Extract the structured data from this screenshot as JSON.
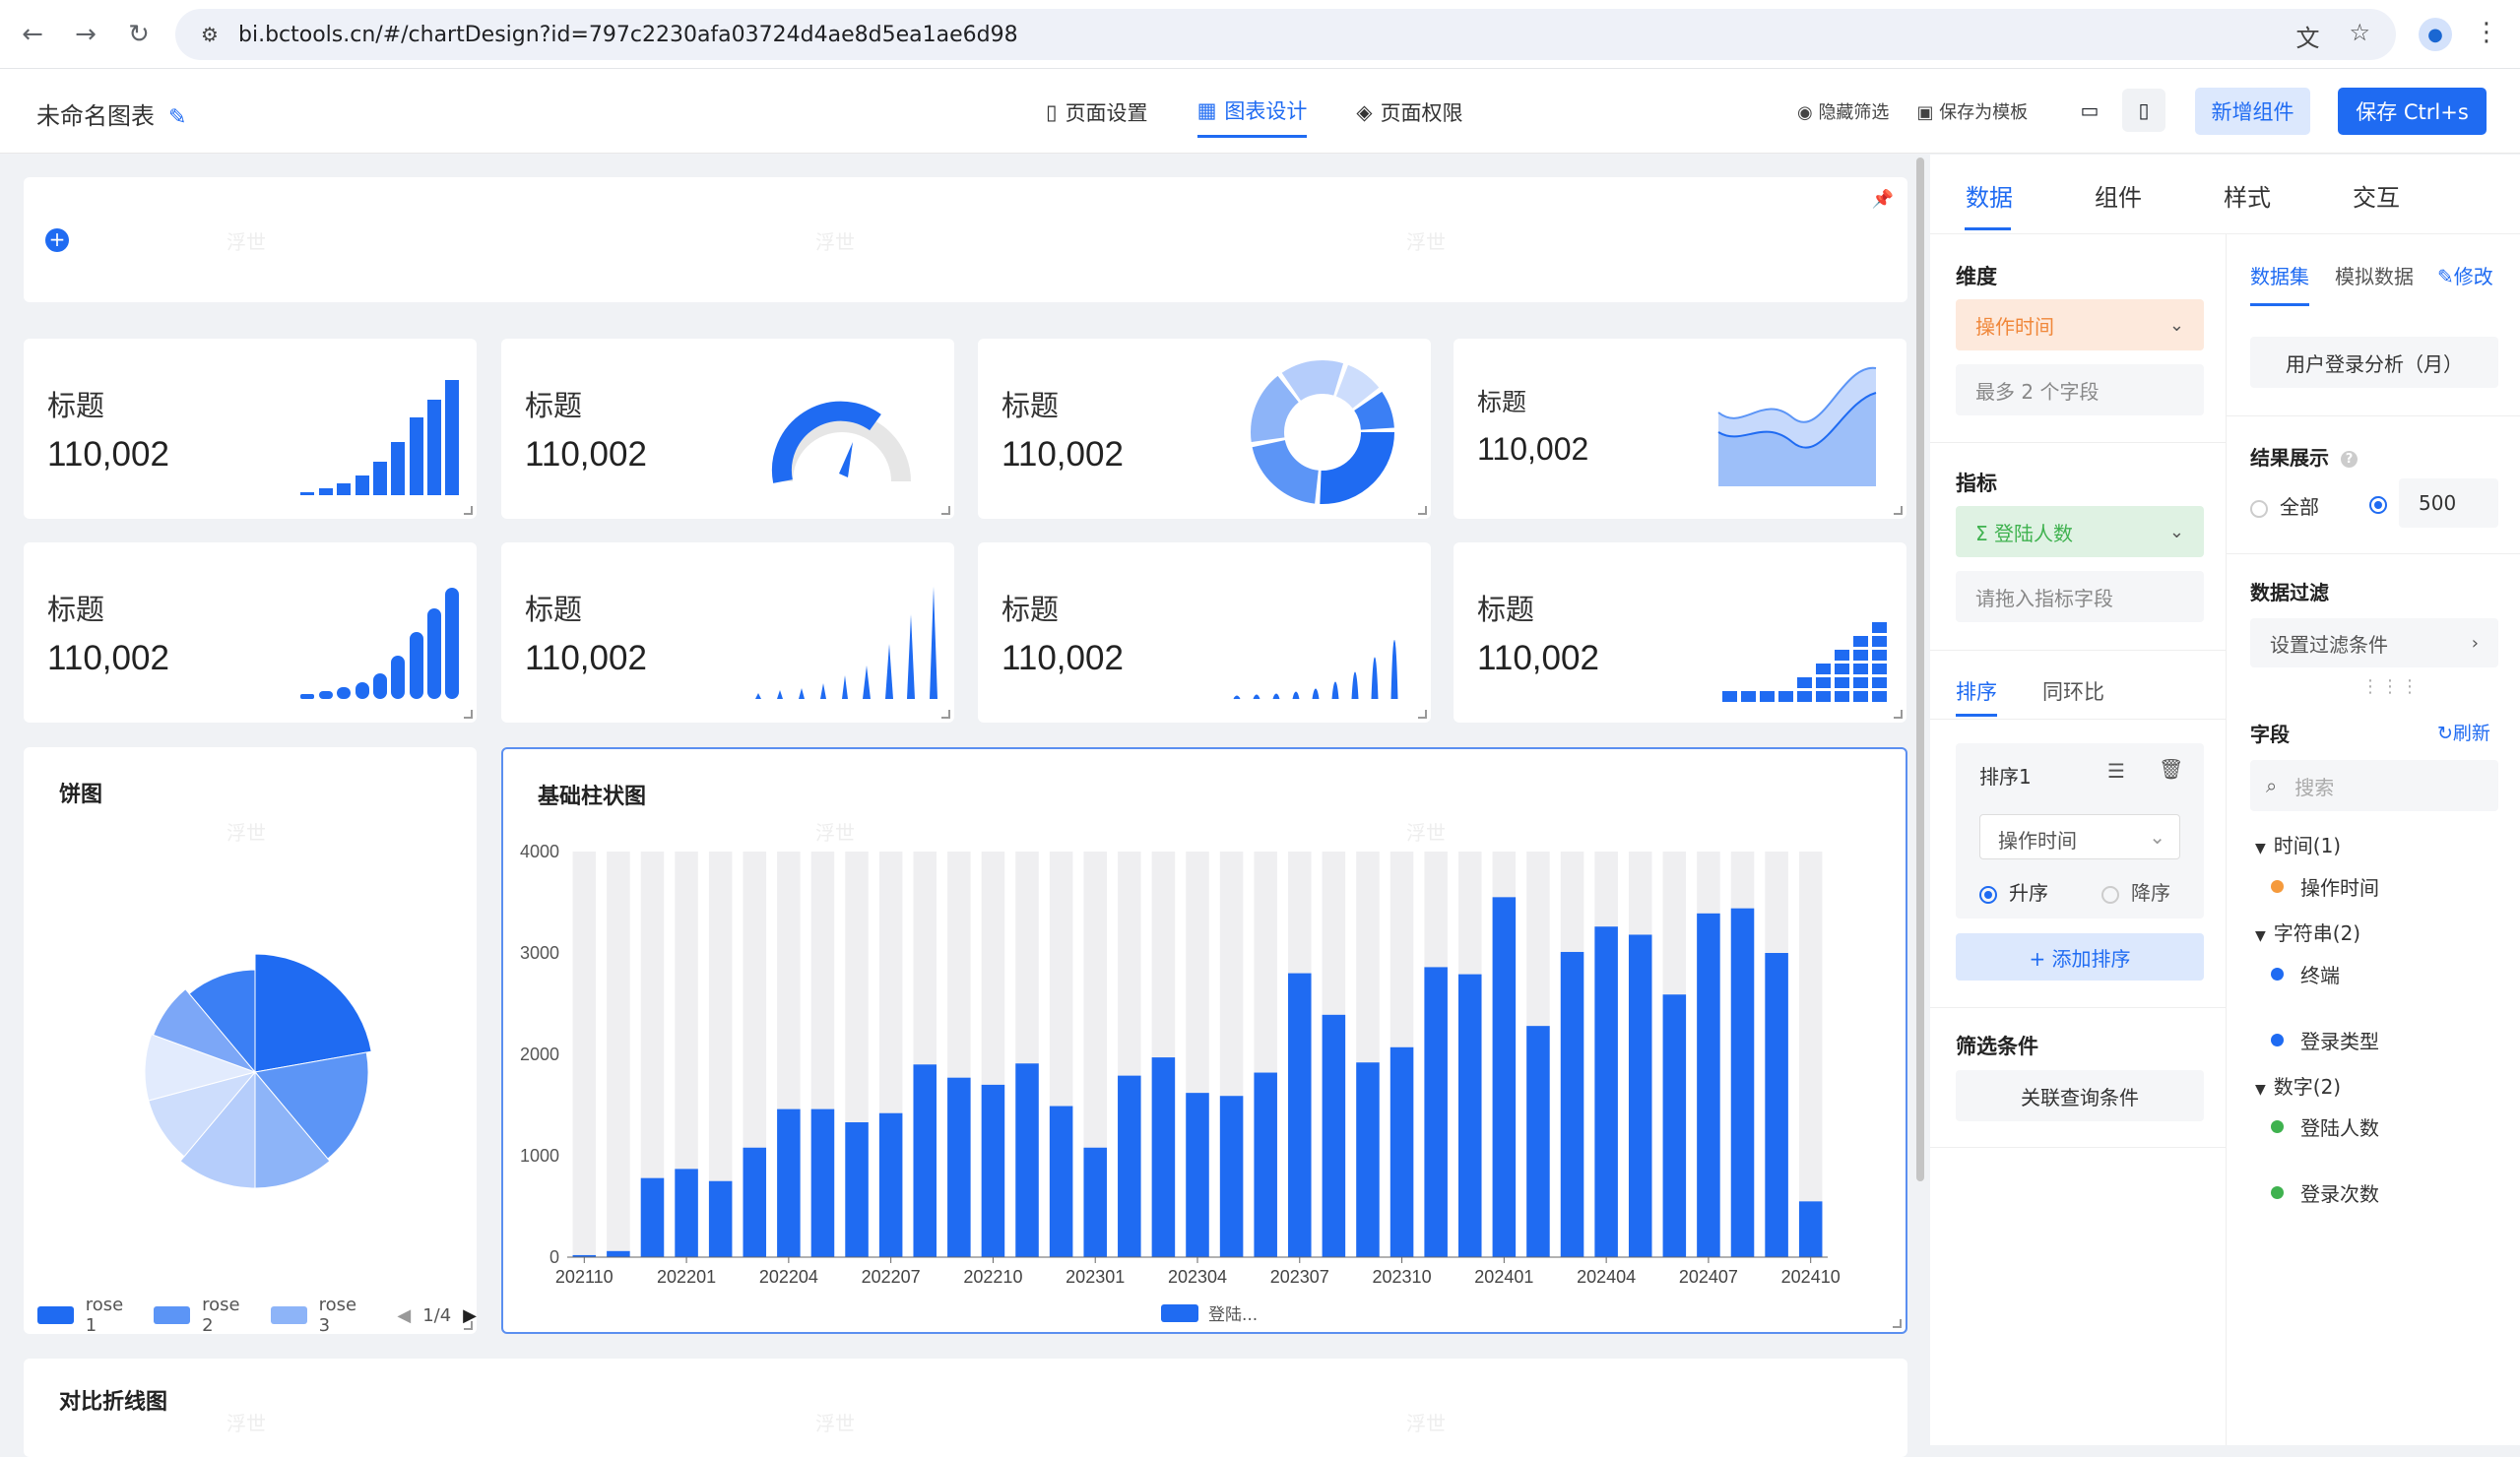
{
  "browser": {
    "url": "bi.bctools.cn/#/chartDesign?id=797c2230afa03724d4ae8d5ea1ae6d98"
  },
  "header": {
    "chart_name": "未命名图表",
    "tabs": [
      {
        "label": "页面设置"
      },
      {
        "label": "图表设计"
      },
      {
        "label": "页面权限"
      }
    ],
    "hide_filter": "隐藏筛选",
    "save_template": "保存为模板",
    "add_component": "新增组件",
    "save": "保存 Ctrl+s"
  },
  "kpis": [
    {
      "label": "标题",
      "value": "110,002"
    },
    {
      "label": "标题",
      "value": "110,002"
    },
    {
      "label": "标题",
      "value": "110,002"
    },
    {
      "label": "标题",
      "value": "110,002"
    },
    {
      "label": "标题",
      "value": "110,002"
    },
    {
      "label": "标题",
      "value": "110,002"
    },
    {
      "label": "标题",
      "value": "110,002"
    },
    {
      "label": "标题",
      "value": "110,002"
    }
  ],
  "watermark": "浮世",
  "pie": {
    "title": "饼图",
    "legend": [
      "rose 1",
      "rose 2",
      "rose 3"
    ],
    "page": "1/4",
    "colors": [
      "#1f6bf2",
      "#5c95f6",
      "#8db4f8",
      "#b5cdfb",
      "#cdddfc",
      "#e2ebfd",
      "#7ca7f7",
      "#3b7ff4"
    ]
  },
  "chart_data": {
    "type": "bar",
    "title": "基础柱状图",
    "xlabel": "",
    "ylabel": "",
    "ylim": [
      0,
      4000
    ],
    "yticks": [
      0,
      1000,
      2000,
      3000,
      4000
    ],
    "categories": [
      "202110",
      "202111",
      "202112",
      "202201",
      "202202",
      "202203",
      "202204",
      "202205",
      "202206",
      "202207",
      "202208",
      "202209",
      "202210",
      "202211",
      "202212",
      "202301",
      "202302",
      "202303",
      "202304",
      "202305",
      "202306",
      "202307",
      "202308",
      "202309",
      "202310",
      "202311",
      "202312",
      "202401",
      "202402",
      "202403",
      "202404",
      "202405",
      "202406",
      "202407",
      "202408",
      "202409",
      "202410"
    ],
    "xticks": [
      "202110",
      "202201",
      "202204",
      "202207",
      "202210",
      "202301",
      "202304",
      "202307",
      "202310",
      "202401",
      "202404",
      "202407",
      "202410"
    ],
    "series": [
      {
        "name": "登陆...",
        "values": [
          20,
          60,
          780,
          870,
          750,
          1080,
          1460,
          1460,
          1330,
          1420,
          1900,
          1770,
          1700,
          1910,
          1490,
          1080,
          1790,
          1970,
          1620,
          1590,
          1820,
          2800,
          2390,
          1920,
          2070,
          2860,
          2790,
          3550,
          2280,
          3010,
          3260,
          3180,
          2590,
          3390,
          3440,
          3000,
          550
        ]
      }
    ],
    "background_bar": 4000,
    "bar_color": "#1f6bf2",
    "bg_color": "#efeff1"
  },
  "line_card": {
    "title": "对比折线图"
  },
  "panel": {
    "tabs": [
      "数据",
      "组件",
      "样式",
      "交互"
    ],
    "dimension_label": "维度",
    "dimension_field": "操作时间",
    "dimension_hint": "最多 2 个字段",
    "metric_label": "指标",
    "metric_field": "Σ 登陆人数",
    "metric_hint": "请拖入指标字段",
    "sort_tab": "排序",
    "yoy_tab": "同环比",
    "sort_name": "排序1",
    "sort_field": "操作时间",
    "asc": "升序",
    "desc": "降序",
    "add_sort": "+ 添加排序",
    "filter_label": "筛选条件",
    "filter_button": "关联查询条件",
    "dataset_tab": "数据集",
    "mock_tab": "模拟数据",
    "edit": "修改",
    "dataset_name": "用户登录分析（月）",
    "result_label": "结果展示",
    "all": "全部",
    "limit": "500",
    "data_filter_label": "数据过滤",
    "data_filter_button": "设置过滤条件",
    "fields_label": "字段",
    "refresh": "刷新",
    "search_placeholder": "搜索",
    "groups": [
      {
        "name": "时间(1)",
        "fields": [
          {
            "name": "操作时间",
            "color": "#f59a3c"
          }
        ]
      },
      {
        "name": "字符串(2)",
        "fields": [
          {
            "name": "终端",
            "color": "#1f6bf2"
          },
          {
            "name": "登录类型",
            "color": "#1f6bf2"
          }
        ]
      },
      {
        "name": "数字(2)",
        "fields": [
          {
            "name": "登陆人数",
            "color": "#3fb24f"
          },
          {
            "name": "登录次数",
            "color": "#3fb24f"
          }
        ]
      }
    ]
  }
}
